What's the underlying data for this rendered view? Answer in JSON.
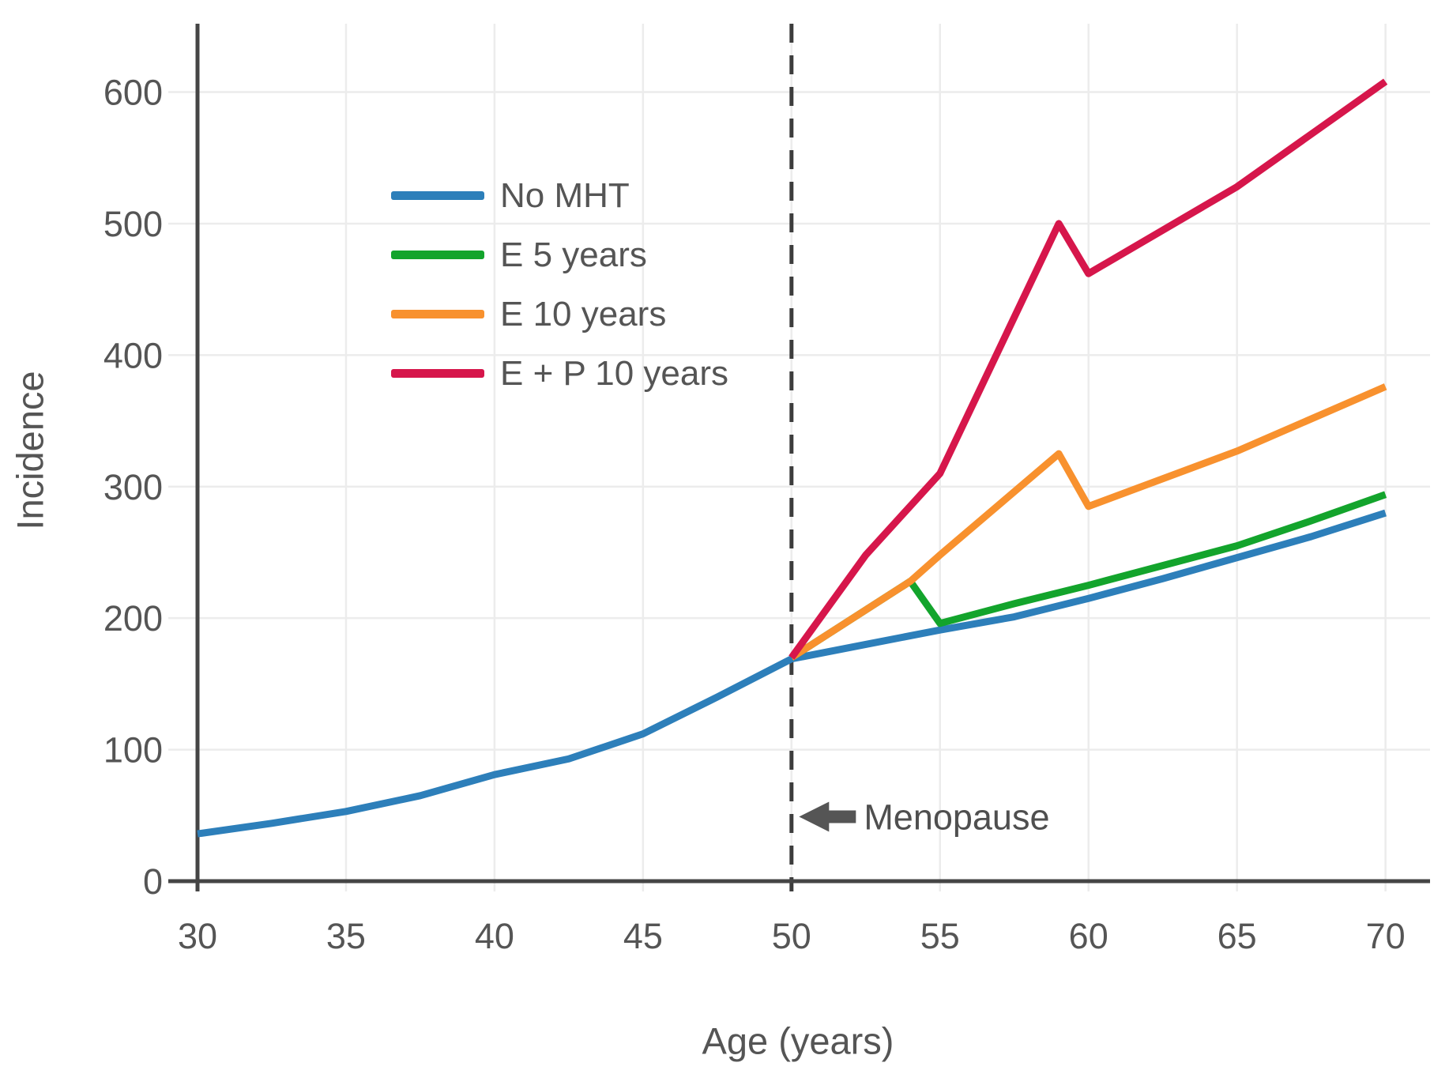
{
  "figure": {
    "background": "#ffffff",
    "axis_color": "#454545",
    "grid_color": "#ececec",
    "tick_label_color": "#555555",
    "axis_title_color": "#555555",
    "annotation_color": "#4f4f4f",
    "dashed_line_color": "#3d3d3d"
  },
  "chart_data": {
    "type": "line",
    "title": "",
    "xlabel": "Age (years)",
    "ylabel": "Incidence",
    "x_ticks": [
      30,
      35,
      40,
      45,
      50,
      55,
      60,
      65,
      70
    ],
    "y_ticks": [
      0,
      100,
      200,
      300,
      400,
      500,
      600
    ],
    "xlim": [
      30,
      71.5
    ],
    "ylim": [
      0,
      652
    ],
    "grid": true,
    "legend_position": "upper-left-inside",
    "vline": {
      "x": 50,
      "style": "dashed"
    },
    "annotations": [
      {
        "text": "Menopause",
        "arrow": "left",
        "x": 50.2,
        "y": 49
      }
    ],
    "series": [
      {
        "name": "No MHT",
        "color": "#2d7fba",
        "x": [
          30,
          32.5,
          35,
          37.5,
          40,
          42.5,
          45,
          47.5,
          50,
          52.5,
          55,
          57.5,
          60,
          62.5,
          65,
          67.5,
          70
        ],
        "y": [
          36,
          44,
          53,
          65,
          81,
          93,
          112,
          140,
          169,
          180,
          191,
          201,
          215,
          230,
          246,
          262,
          280
        ]
      },
      {
        "name": "E 5 years",
        "color": "#13a42c",
        "x": [
          50,
          54,
          55,
          57.5,
          60,
          62.5,
          65,
          67.5,
          70
        ],
        "y": [
          170,
          228,
          196,
          211,
          225,
          240,
          255,
          274,
          294
        ]
      },
      {
        "name": "E 10 years",
        "color": "#f8912e",
        "x": [
          50,
          54,
          55,
          59,
          60,
          65,
          70
        ],
        "y": [
          170,
          228,
          248,
          325,
          285,
          327,
          376
        ]
      },
      {
        "name": "E + P 10 years",
        "color": "#d6164b",
        "x": [
          50,
          52.5,
          55,
          59,
          60,
          65,
          70
        ],
        "y": [
          170,
          248,
          310,
          500,
          462,
          528,
          608
        ]
      }
    ]
  }
}
